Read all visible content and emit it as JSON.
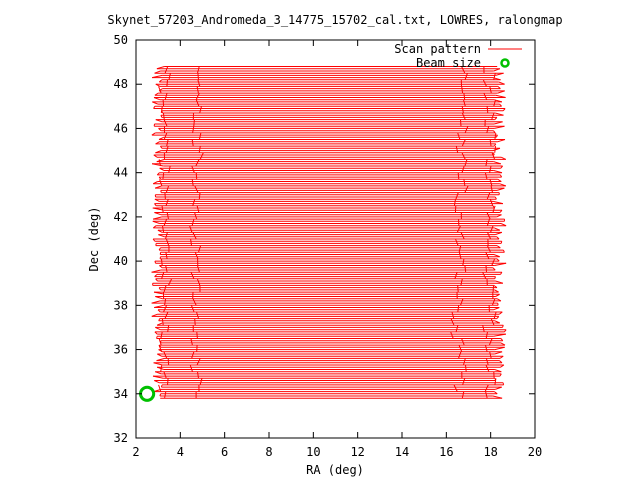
{
  "chart_data": {
    "type": "line",
    "title": "Skynet_57203_Andromeda_3_14775_15702_cal.txt, LOWRES, ralongmap",
    "xlabel": "RA (deg)",
    "ylabel": "Dec (deg)",
    "xlim": [
      2,
      20
    ],
    "ylim": [
      32,
      50
    ],
    "x_ticks": [
      2,
      4,
      6,
      8,
      10,
      12,
      14,
      16,
      18,
      20
    ],
    "y_ticks": [
      32,
      34,
      36,
      38,
      40,
      42,
      44,
      46,
      48,
      50
    ],
    "grid": false,
    "legend_position": "top-right",
    "series": [
      {
        "name": "Scan pattern",
        "color": "#ff0000",
        "style": "raster-lines",
        "ra_range": [
          2.7,
          18.7
        ],
        "dec_range": [
          33.8,
          48.8
        ],
        "dec_spacing": 0.1
      },
      {
        "name": "Beam size",
        "color": "#00c000",
        "style": "circle",
        "center": [
          2.5,
          34
        ],
        "diameter_deg": 0.6
      }
    ]
  }
}
